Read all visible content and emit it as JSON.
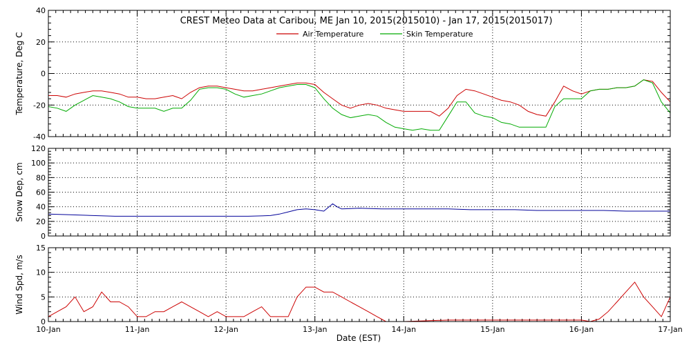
{
  "chart_data": {
    "type": "line",
    "title": "CREST Meteo Data at Caribou, ME   Jan 10, 2015(2015010) - Jan 17, 2015(2015017)",
    "xlabel": "Date (EST)",
    "x_ticks": [
      "10-Jan",
      "11-Jan",
      "12-Jan",
      "13-Jan",
      "14-Jan",
      "15-Jan",
      "16-Jan",
      "17-Jan"
    ],
    "xlim": [
      0,
      7
    ],
    "grid": true,
    "legend_placement": "top-center",
    "panels": [
      {
        "id": "temperature",
        "ylabel": "Temperature, Deg C",
        "ylim": [
          -40,
          40
        ],
        "y_ticks": [
          -40,
          -20,
          0,
          20,
          40
        ],
        "series": [
          {
            "name": "Air Temperature",
            "color": "#cc0000",
            "x": [
              0,
              0.1,
              0.2,
              0.3,
              0.4,
              0.5,
              0.6,
              0.7,
              0.8,
              0.9,
              1.0,
              1.1,
              1.2,
              1.3,
              1.4,
              1.5,
              1.6,
              1.7,
              1.8,
              1.9,
              2.0,
              2.1,
              2.2,
              2.3,
              2.4,
              2.5,
              2.6,
              2.7,
              2.8,
              2.9,
              3.0,
              3.1,
              3.2,
              3.3,
              3.4,
              3.5,
              3.6,
              3.7,
              3.8,
              3.9,
              4.0,
              4.1,
              4.2,
              4.3,
              4.4,
              4.5,
              4.6,
              4.7,
              4.8,
              4.9,
              5.0,
              5.1,
              5.2,
              5.3,
              5.4,
              5.5,
              5.6,
              5.7,
              5.8,
              5.9,
              6.0,
              6.1,
              6.2,
              6.3,
              6.4,
              6.5,
              6.6,
              6.7,
              6.8,
              6.9,
              7.0
            ],
            "values": [
              -14,
              -14,
              -15,
              -13,
              -12,
              -11,
              -11,
              -12,
              -13,
              -15,
              -15,
              -16,
              -16,
              -15,
              -14,
              -16,
              -12,
              -9,
              -8,
              -8,
              -9,
              -10,
              -11,
              -11,
              -10,
              -9,
              -8,
              -7,
              -6,
              -6,
              -7,
              -12,
              -16,
              -20,
              -22,
              -20,
              -19,
              -20,
              -22,
              -23,
              -24,
              -24,
              -24,
              -24,
              -27,
              -22,
              -14,
              -10,
              -11,
              -13,
              -15,
              -17,
              -18,
              -20,
              -24,
              -26,
              -27,
              -18,
              -8,
              -11,
              -13,
              -11,
              -10,
              -10,
              -9,
              -9,
              -8,
              -4,
              -5,
              -12,
              -18
            ]
          },
          {
            "name": "Skin Temperature",
            "color": "#00aa00",
            "x": [
              0,
              0.1,
              0.2,
              0.3,
              0.4,
              0.5,
              0.6,
              0.7,
              0.8,
              0.9,
              1.0,
              1.1,
              1.2,
              1.3,
              1.4,
              1.5,
              1.6,
              1.7,
              1.8,
              1.9,
              2.0,
              2.1,
              2.2,
              2.3,
              2.4,
              2.5,
              2.6,
              2.7,
              2.8,
              2.9,
              3.0,
              3.1,
              3.2,
              3.3,
              3.4,
              3.5,
              3.6,
              3.7,
              3.8,
              3.9,
              4.0,
              4.1,
              4.2,
              4.3,
              4.4,
              4.5,
              4.6,
              4.7,
              4.8,
              4.9,
              5.0,
              5.1,
              5.2,
              5.3,
              5.4,
              5.5,
              5.6,
              5.7,
              5.8,
              5.9,
              6.0,
              6.1,
              6.2,
              6.3,
              6.4,
              6.5,
              6.6,
              6.7,
              6.8,
              6.9,
              7.0
            ],
            "values": [
              -21,
              -22,
              -24,
              -20,
              -17,
              -14,
              -15,
              -16,
              -18,
              -21,
              -22,
              -22,
              -22,
              -24,
              -22,
              -22,
              -17,
              -10,
              -9,
              -9,
              -10,
              -13,
              -15,
              -14,
              -13,
              -11,
              -9,
              -8,
              -7,
              -7,
              -9,
              -16,
              -22,
              -26,
              -28,
              -27,
              -26,
              -27,
              -31,
              -34,
              -35,
              -36,
              -35,
              -36,
              -36,
              -27,
              -18,
              -18,
              -25,
              -27,
              -28,
              -31,
              -32,
              -34,
              -34,
              -34,
              -34,
              -21,
              -16,
              -16,
              -16,
              -11,
              -10,
              -10,
              -9,
              -9,
              -8,
              -4,
              -6,
              -18,
              -25
            ]
          }
        ]
      },
      {
        "id": "snow_depth",
        "ylabel": "Snow Dep, cm",
        "ylim": [
          0,
          120
        ],
        "y_ticks": [
          0,
          20,
          40,
          60,
          80,
          100,
          120
        ],
        "series": [
          {
            "name": "",
            "color": "#000099",
            "x": [
              0,
              0.25,
              0.5,
              0.75,
              1.0,
              1.25,
              1.5,
              1.75,
              2.0,
              2.25,
              2.5,
              2.6,
              2.7,
              2.8,
              2.9,
              3.0,
              3.1,
              3.2,
              3.25,
              3.3,
              3.5,
              3.75,
              4.0,
              4.25,
              4.5,
              4.75,
              5.0,
              5.25,
              5.5,
              5.75,
              6.0,
              6.25,
              6.5,
              6.75,
              7.0
            ],
            "values": [
              30,
              29,
              28,
              27,
              27,
              27,
              27,
              27,
              27,
              27,
              28,
              30,
              33,
              36,
              37,
              36,
              34,
              44,
              40,
              37,
              38,
              37,
              37,
              37,
              37,
              36,
              36,
              36,
              35,
              35,
              35,
              35,
              34,
              34,
              34
            ]
          }
        ]
      },
      {
        "id": "wind_speed",
        "ylabel": "Wind Spd, m/s",
        "ylim": [
          0,
          15
        ],
        "y_ticks": [
          0,
          5,
          10,
          15
        ],
        "series": [
          {
            "name": "",
            "color": "#cc0000",
            "x": [
              0,
              0.1,
              0.2,
              0.3,
              0.4,
              0.5,
              0.6,
              0.7,
              0.8,
              0.9,
              1.0,
              1.1,
              1.2,
              1.3,
              1.4,
              1.5,
              1.6,
              1.7,
              1.8,
              1.9,
              2.0,
              2.1,
              2.2,
              2.3,
              2.4,
              2.5,
              2.6,
              2.7,
              2.8,
              2.9,
              3.0,
              3.1,
              3.2,
              3.3,
              3.4,
              3.5,
              3.6,
              3.7,
              3.8,
              3.9,
              4.0,
              4.5,
              5.0,
              5.5,
              6.0,
              6.1,
              6.2,
              6.3,
              6.4,
              6.5,
              6.6,
              6.7,
              6.8,
              6.9,
              7.0
            ],
            "values": [
              1,
              2,
              3,
              5,
              2,
              3,
              6,
              4,
              4,
              3,
              1,
              1,
              2,
              2,
              3,
              4,
              3,
              2,
              1,
              2,
              1,
              1,
              1,
              2,
              3,
              1,
              1,
              1,
              5,
              7,
              7,
              6,
              6,
              5,
              4,
              3,
              2,
              1,
              0,
              0,
              0,
              0.3,
              0.3,
              0.3,
              0.3,
              0,
              0.5,
              2,
              4,
              6,
              8,
              5,
              3,
              1,
              5
            ]
          }
        ]
      }
    ]
  }
}
